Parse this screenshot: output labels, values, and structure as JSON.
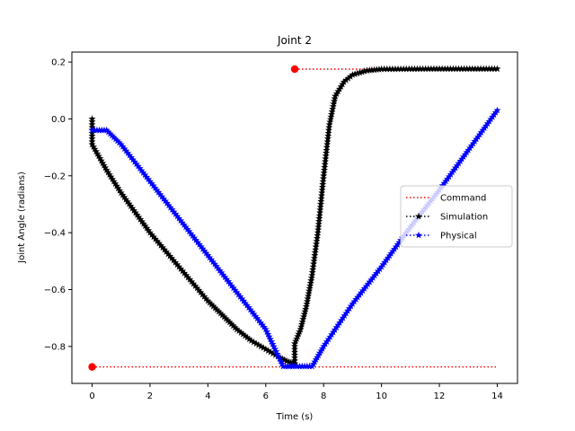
{
  "chart_data": {
    "type": "line",
    "title": "Joint 2",
    "xlabel": "Time (s)",
    "ylabel": "Joint Angle (radians)",
    "xlim": [
      -0.7,
      14.7
    ],
    "ylim": [
      -0.93,
      0.235
    ],
    "xticks": [
      0,
      2,
      4,
      6,
      8,
      10,
      12,
      14
    ],
    "yticks": [
      -0.8,
      -0.6,
      -0.4,
      -0.2,
      0.0,
      0.2
    ],
    "xtick_labels": [
      "0",
      "2",
      "4",
      "6",
      "8",
      "10",
      "12",
      "14"
    ],
    "ytick_labels": [
      "−0.8",
      "−0.6",
      "−0.4",
      "−0.2",
      "0.0",
      "0.2"
    ],
    "grid": false,
    "legend": {
      "placement": "center-right",
      "entries": [
        "Command",
        "Simulation",
        "Physical"
      ]
    },
    "series": [
      {
        "name": "Command",
        "color": "#ff0000",
        "linestyle": "dotted",
        "marker": "circle",
        "segments": [
          {
            "x": [
              0,
              14
            ],
            "y": [
              -0.872,
              -0.872
            ],
            "marker_at": [
              [
                0,
                -0.872
              ]
            ]
          },
          {
            "x": [
              7,
              14
            ],
            "y": [
              0.175,
              0.175
            ],
            "marker_at": [
              [
                7,
                0.175
              ]
            ]
          }
        ]
      },
      {
        "name": "Simulation",
        "color": "#000000",
        "linestyle": "dotted",
        "marker": "star",
        "points": [
          [
            0.0,
            0.0
          ],
          [
            0.0,
            -0.09
          ],
          [
            0.5,
            -0.18
          ],
          [
            1.0,
            -0.26
          ],
          [
            1.5,
            -0.33
          ],
          [
            2.0,
            -0.4
          ],
          [
            2.5,
            -0.46
          ],
          [
            3.0,
            -0.52
          ],
          [
            3.5,
            -0.58
          ],
          [
            4.0,
            -0.64
          ],
          [
            4.5,
            -0.69
          ],
          [
            5.0,
            -0.74
          ],
          [
            5.5,
            -0.78
          ],
          [
            6.0,
            -0.81
          ],
          [
            6.5,
            -0.84
          ],
          [
            6.8,
            -0.855
          ],
          [
            7.0,
            -0.86
          ],
          [
            7.0,
            -0.79
          ],
          [
            7.2,
            -0.74
          ],
          [
            7.4,
            -0.66
          ],
          [
            7.6,
            -0.55
          ],
          [
            7.8,
            -0.4
          ],
          [
            8.0,
            -0.2
          ],
          [
            8.2,
            -0.02
          ],
          [
            8.4,
            0.08
          ],
          [
            8.7,
            0.13
          ],
          [
            9.0,
            0.155
          ],
          [
            9.5,
            0.17
          ],
          [
            10.0,
            0.175
          ],
          [
            12.0,
            0.176
          ],
          [
            14.0,
            0.176
          ]
        ]
      },
      {
        "name": "Physical",
        "color": "#0000ff",
        "linestyle": "dotted",
        "marker": "star",
        "points": [
          [
            0.0,
            -0.04
          ],
          [
            0.5,
            -0.04
          ],
          [
            1.0,
            -0.09
          ],
          [
            2.0,
            -0.22
          ],
          [
            3.0,
            -0.35
          ],
          [
            4.0,
            -0.48
          ],
          [
            5.0,
            -0.61
          ],
          [
            6.0,
            -0.74
          ],
          [
            6.6,
            -0.87
          ],
          [
            7.0,
            -0.87
          ],
          [
            7.6,
            -0.87
          ],
          [
            8.0,
            -0.8
          ],
          [
            9.0,
            -0.65
          ],
          [
            10.0,
            -0.52
          ],
          [
            11.0,
            -0.38
          ],
          [
            12.0,
            -0.25
          ],
          [
            13.0,
            -0.11
          ],
          [
            14.0,
            0.03
          ]
        ]
      }
    ]
  }
}
